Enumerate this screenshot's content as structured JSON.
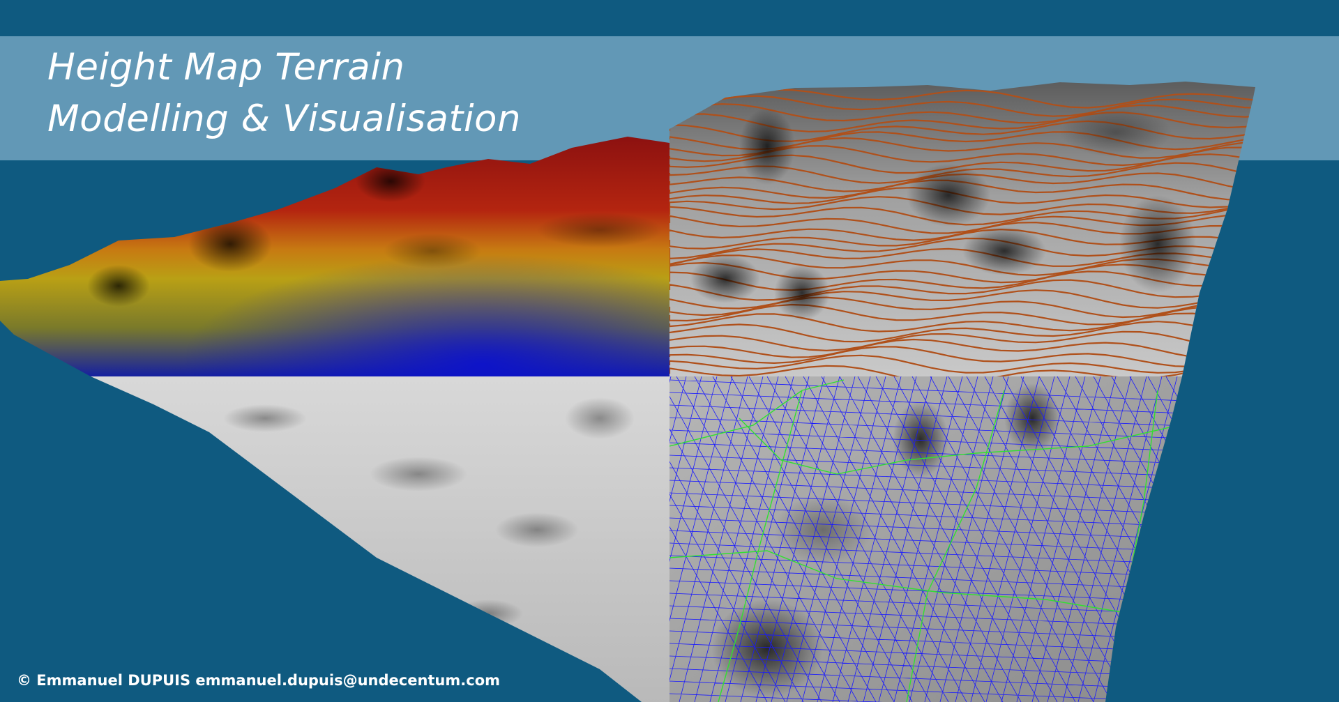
{
  "title": {
    "line1": "Height Map Terrain",
    "line2": "Modelling & Visualisation"
  },
  "footer": {
    "copyright": "© Emmanuel DUPUIS emmanuel.dupuis@undecentum.com"
  },
  "colors": {
    "background": "#0f5a80",
    "title_band": "#96bed7",
    "contour_line": "#b0501a",
    "wireframe_fine": "#1818ff",
    "wireframe_coarse": "#30e030"
  },
  "panels": [
    {
      "name": "height-color-panel",
      "style": "elevation colour ramp (red-yellow-blue)"
    },
    {
      "name": "contour-panel",
      "style": "shaded with contour lines"
    },
    {
      "name": "shaded-panel",
      "style": "grey shaded relief"
    },
    {
      "name": "wireframe-panel",
      "style": "shaded with blue/green triangle mesh"
    }
  ]
}
